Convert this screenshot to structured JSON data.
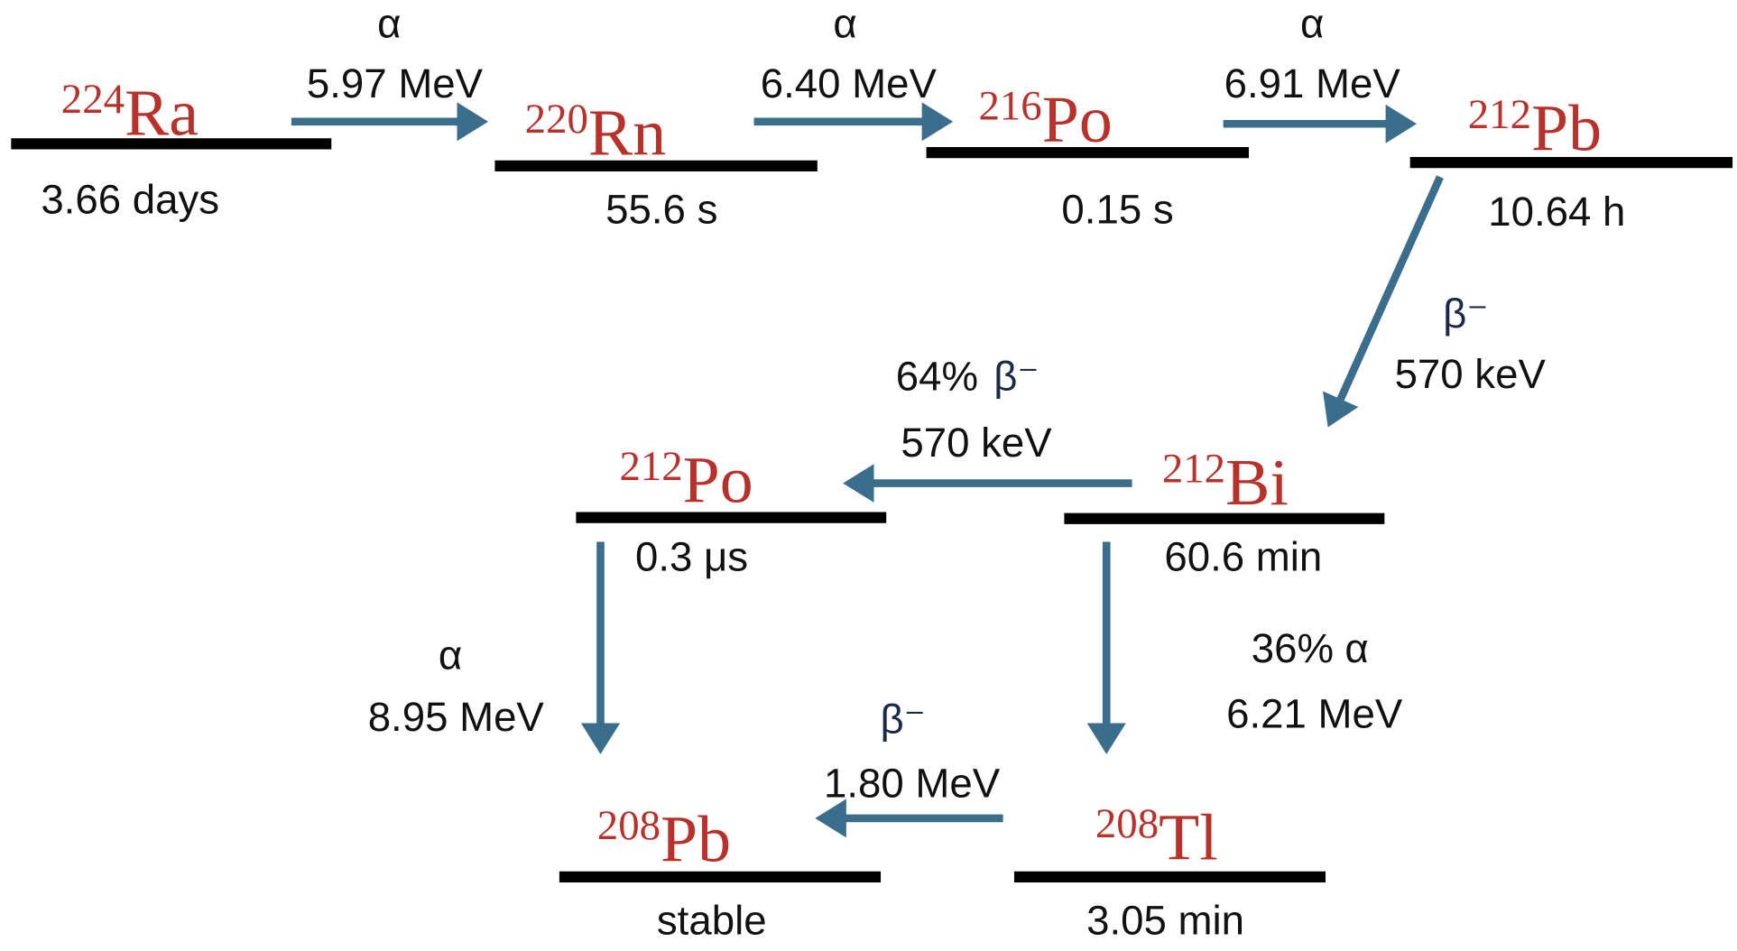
{
  "nodes": [
    {
      "mass": "224",
      "symbol": "Ra",
      "half_life": "3.66 days"
    },
    {
      "mass": "220",
      "symbol": "Rn",
      "half_life": "55.6 s"
    },
    {
      "mass": "216",
      "symbol": "Po",
      "half_life": "0.15 s"
    },
    {
      "mass": "212",
      "symbol": "Pb",
      "half_life": "10.64 h"
    },
    {
      "mass": "212",
      "symbol": "Bi",
      "half_life": "60.6 min"
    },
    {
      "mass": "212",
      "symbol": "Po",
      "half_life": "0.3 μs"
    },
    {
      "mass": "208",
      "symbol": "Pb",
      "half_life": "stable"
    },
    {
      "mass": "208",
      "symbol": "Tl",
      "half_life": "3.05 min"
    }
  ],
  "decays": [
    {
      "mode": "α",
      "energy": "5.97 MeV"
    },
    {
      "mode": "α",
      "energy": "6.40 MeV"
    },
    {
      "mode": "α",
      "energy": "6.91 MeV"
    },
    {
      "mode": "β⁻",
      "energy": "570 keV"
    },
    {
      "branch": "64%",
      "mode": "β⁻",
      "energy": "570 keV"
    },
    {
      "branch": "36%",
      "mode": "α",
      "energy": "6.21 MeV"
    },
    {
      "mode": "α",
      "energy": "8.95  MeV"
    },
    {
      "mode": "β⁻",
      "energy": "1.80  MeV"
    }
  ]
}
